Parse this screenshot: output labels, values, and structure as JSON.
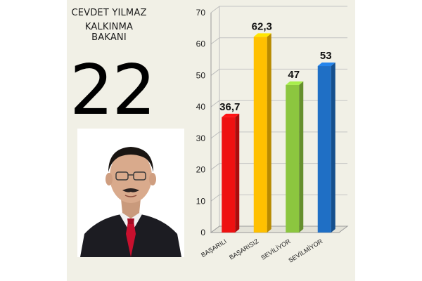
{
  "person": {
    "name": "CEVDET YILMAZ",
    "title": "KALKINMA BAKANI",
    "rank": "22"
  },
  "chart_data": {
    "type": "bar",
    "categories": [
      "BAŞARILI",
      "BAŞARISIZ",
      "SEVİLİYOR",
      "SEVİLMİYOR"
    ],
    "values": [
      36.7,
      62.3,
      47,
      53
    ],
    "value_labels": [
      "36,7",
      "62,3",
      "47",
      "53"
    ],
    "colors": [
      "#ee1111",
      "#ffc000",
      "#8cc63f",
      "#1f6fc5"
    ],
    "ylim": [
      0,
      70
    ],
    "yticks": [
      0,
      10,
      20,
      30,
      40,
      50,
      60,
      70
    ],
    "grid": true,
    "three_d": true
  }
}
